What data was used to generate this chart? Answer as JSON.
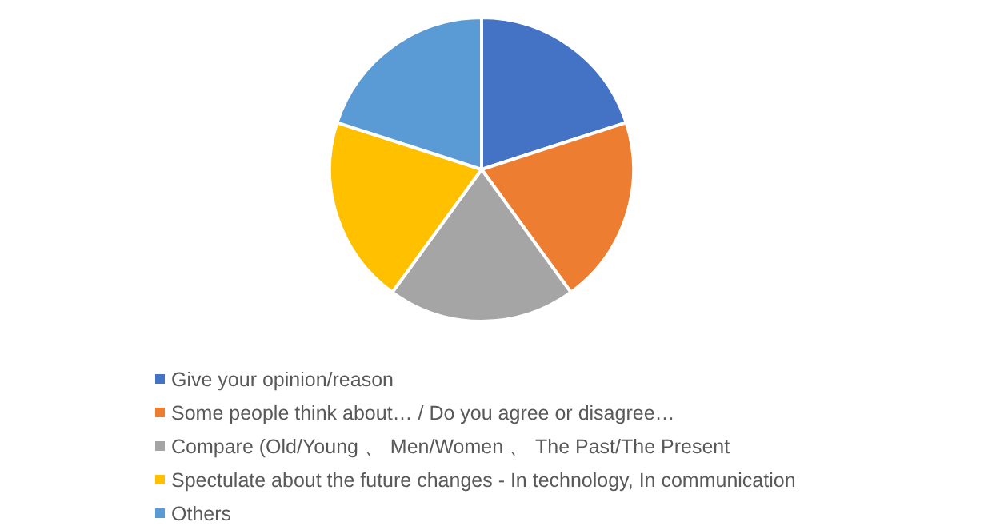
{
  "chart_data": {
    "type": "pie",
    "categories": [
      "Give your opinion/reason",
      "Some people think about… / Do you agree or disagree…",
      "Compare (Old/Young 、 Men/Women 、 The Past/The Present",
      "Spectulate about the future changes - In technology, In communication",
      "Others"
    ],
    "values": [
      20,
      20,
      20,
      20,
      20
    ],
    "colors": [
      "#4472c4",
      "#ed7d31",
      "#a5a5a5",
      "#ffc000",
      "#5b9bd5"
    ],
    "legend": "bottom"
  }
}
